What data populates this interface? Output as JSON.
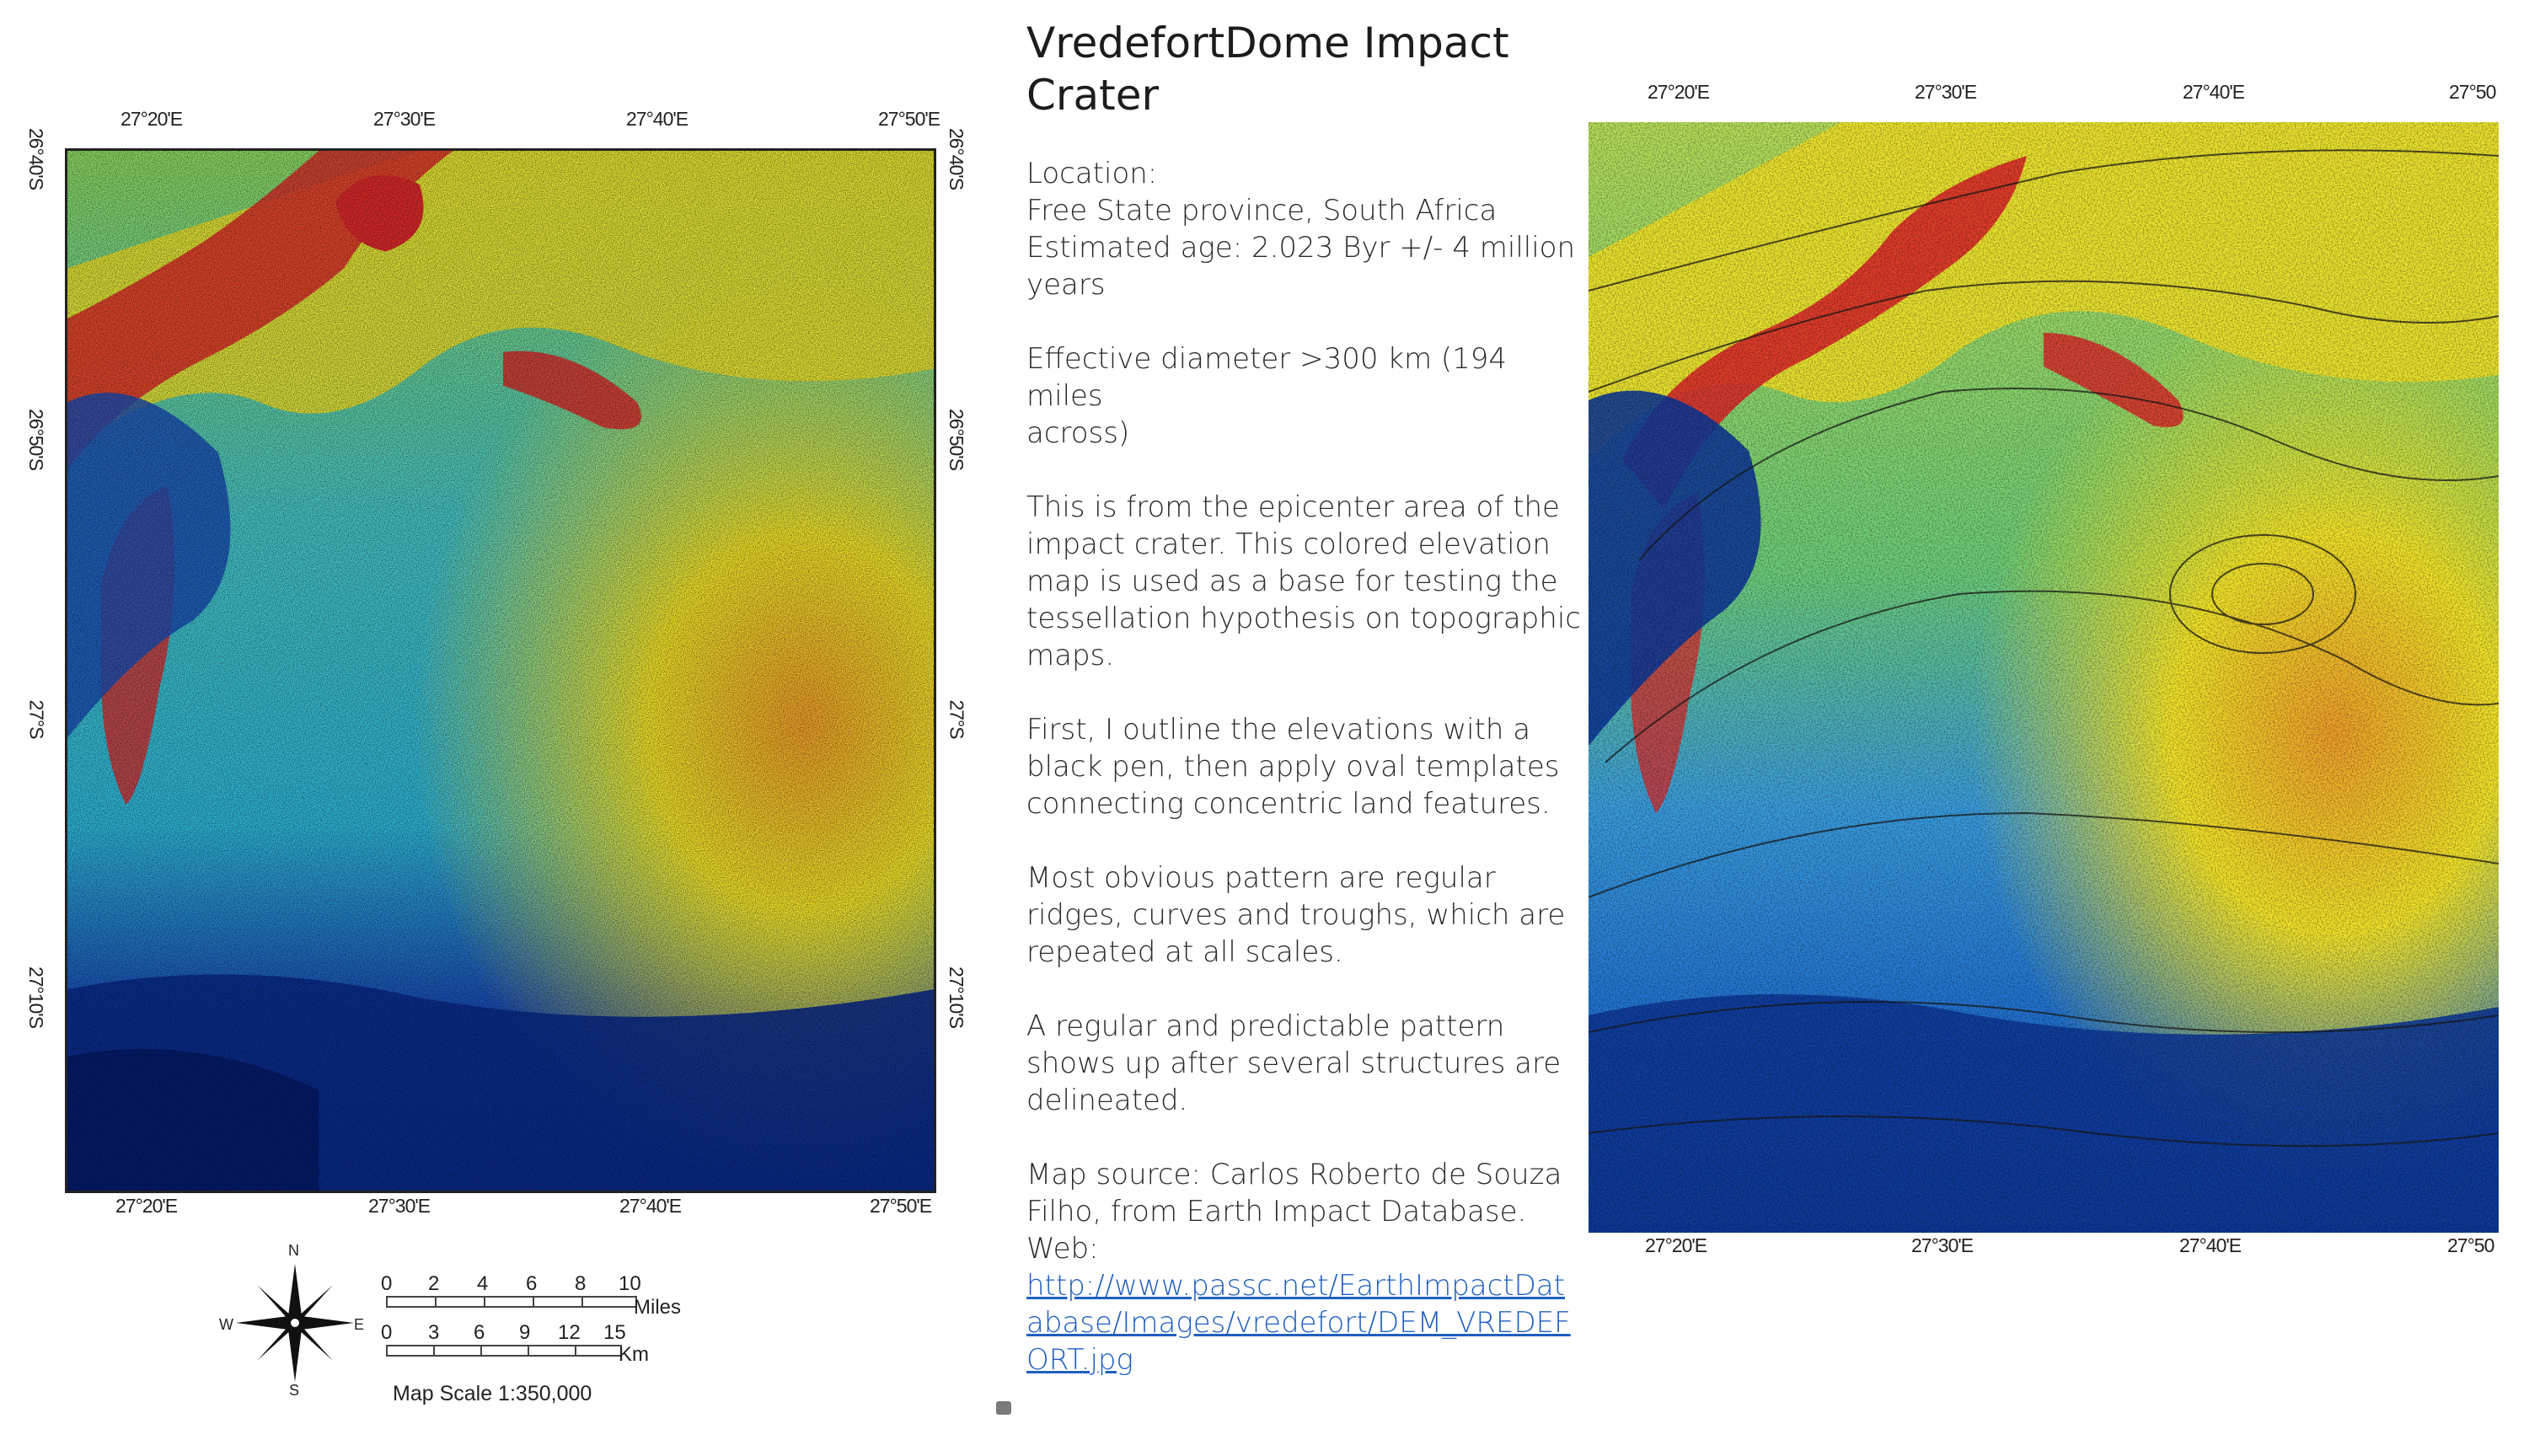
{
  "left_map": {
    "top_labels": [
      "27°20'E",
      "27°30'E",
      "27°40'E",
      "27°50'E"
    ],
    "bottom_labels": [
      "27°20'E",
      "27°30'E",
      "27°40'E",
      "27°50'E"
    ],
    "right_labels": [
      "26°40'S",
      "26°50'S",
      "27°S",
      "27°10'S"
    ],
    "left_labels": [
      "26°40'S",
      "26°50'S",
      "27°S",
      "27°10'S"
    ]
  },
  "right_map": {
    "top_labels": [
      "27°20'E",
      "27°30'E",
      "27°40'E",
      "27°50"
    ],
    "bottom_labels": [
      "27°20'E",
      "27°30'E",
      "27°40'E",
      "27°50"
    ]
  },
  "legend": {
    "compass": {
      "n": "N",
      "s": "S",
      "e": "E",
      "w": "W"
    },
    "miles_ticks": [
      "0",
      "2",
      "4",
      "6",
      "8",
      "10"
    ],
    "miles_unit": "Miles",
    "km_ticks": [
      "0",
      "3",
      "6",
      "9",
      "12",
      "15"
    ],
    "km_unit": "Km",
    "map_scale": "Map Scale 1:350,000"
  },
  "text": {
    "title_line1": "VredefortDome Impact",
    "title_line2": "Crater",
    "location_label": "Location:",
    "location_value": "Free State province, South Africa",
    "age_line1": "Estimated age: 2.023 Byr +/- 4 million",
    "age_line2": "years",
    "diameter_line1": "Effective diameter >300 km (194 miles",
    "diameter_line2": "across)",
    "p1_l1": "This is from the epicenter area of the",
    "p1_l2": "impact crater. This colored elevation",
    "p1_l3": "map is used as a base for testing the",
    "p1_l4": "tessellation hypothesis on topographic",
    "p1_l5": "maps.",
    "p2_l1": "First, I outline the elevations with a",
    "p2_l2": "black pen, then apply oval templates",
    "p2_l3": "connecting concentric land features.",
    "p3_l1": "Most obvious pattern are regular",
    "p3_l2": "ridges, curves and troughs, which are",
    "p3_l3": "repeated at all scales.",
    "p4_l1": "A regular and predictable pattern",
    "p4_l2": "shows up after several structures are",
    "p4_l3": "delineated.",
    "src_l1": "Map source: Carlos Roberto de Souza",
    "src_l2": "Filho, from Earth Impact Database.",
    "src_l3": "Web:",
    "url_l1": "http://www.passc.net/EarthImpactDat",
    "url_l2": "abase/Images/vredefort/DEM_VREDEF",
    "url_l3": "ORT.jpg"
  },
  "colors": {
    "deep_blue": "#0a2a8c",
    "blue": "#1f6fd1",
    "cyan": "#2bc4d9",
    "green": "#7fd35a",
    "yellow": "#f4e62a",
    "orange": "#f2a22a",
    "red": "#e02a2a",
    "link": "#1f5fbf"
  }
}
